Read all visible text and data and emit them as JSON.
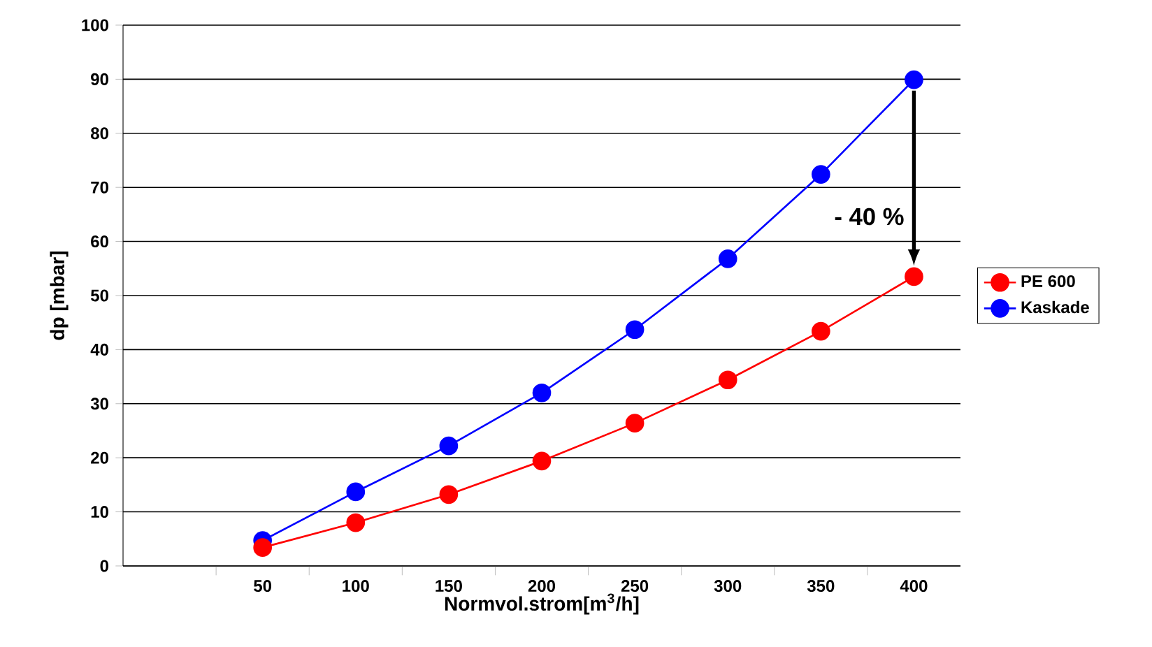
{
  "chart_data": {
    "type": "line",
    "xlabel": "Normvol.strom[m$^{3}$/h]",
    "ylabel": "dp [mbar]",
    "categories": [
      null,
      "50",
      "100",
      "150",
      "200",
      "250",
      "300",
      "350",
      "400"
    ],
    "series": [
      {
        "name": "PE 600",
        "color": "#ff0000",
        "values": [
          null,
          3.4,
          8,
          13.2,
          19.4,
          26.4,
          34.4,
          43.4,
          53.5
        ]
      },
      {
        "name": "Kaskade",
        "color": "#0000ff",
        "values": [
          null,
          4.7,
          13.7,
          22.2,
          32,
          43.7,
          56.8,
          72.4,
          89.9
        ]
      }
    ],
    "ylim": [
      0,
      100
    ],
    "yticks": [
      0,
      10,
      20,
      30,
      40,
      50,
      60,
      70,
      80,
      90,
      100
    ],
    "grid": "y",
    "legend": "right",
    "marker": "circle",
    "line_style": "solid",
    "annotations": [
      "- 40 %"
    ]
  }
}
